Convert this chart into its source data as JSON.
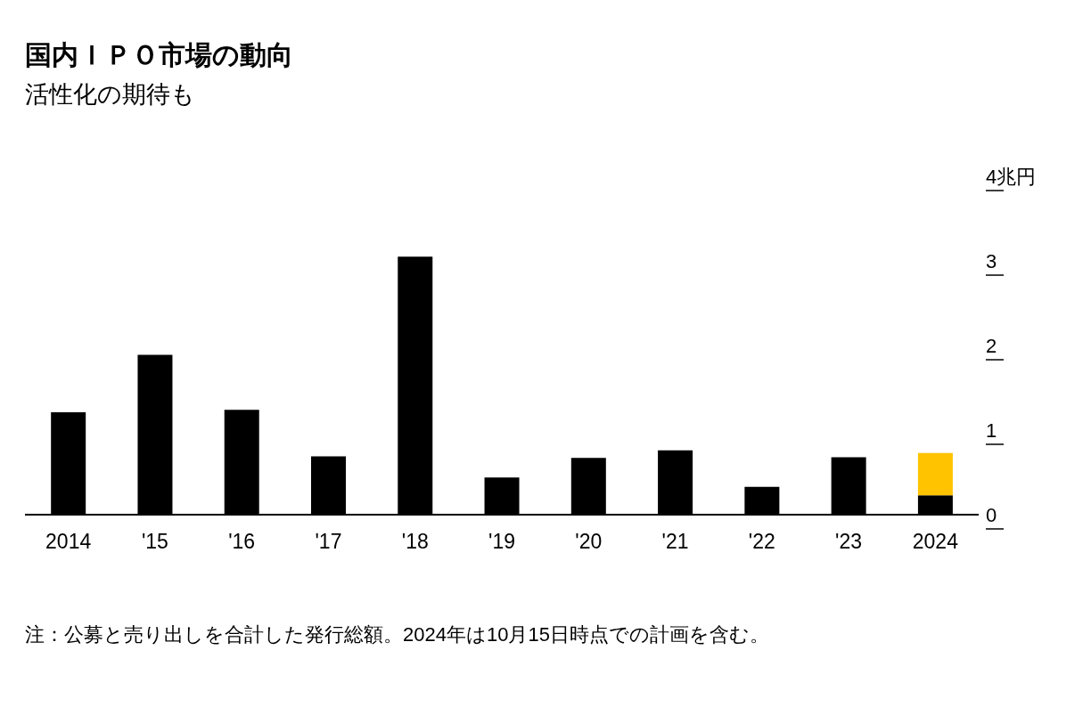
{
  "chart_data": {
    "type": "bar",
    "title": "国内ＩＰＯ市場の動向",
    "subtitle": "活性化の期待も",
    "categories": [
      "2014",
      "'15",
      "'16",
      "'17",
      "'18",
      "'19",
      "'20",
      "'21",
      "'22",
      "'23",
      "2024"
    ],
    "series": [
      {
        "color": "#000000",
        "values": [
          1.21,
          1.89,
          1.24,
          0.69,
          3.05,
          0.44,
          0.67,
          0.76,
          0.33,
          0.68,
          0.23
        ]
      },
      {
        "color": "#ffc300",
        "values": [
          null,
          null,
          null,
          null,
          null,
          null,
          null,
          null,
          null,
          null,
          0.5
        ]
      }
    ],
    "stacked": true,
    "ylim": [
      0,
      4
    ],
    "yticks": [
      0,
      1,
      2,
      3,
      {
        "value": 4,
        "label": "4兆円"
      }
    ],
    "grid": false,
    "legend": false,
    "annotations": [
      "注：公募と売り出しを合計した発行総額。2024年は10月15日時点での計画を含む。"
    ]
  }
}
